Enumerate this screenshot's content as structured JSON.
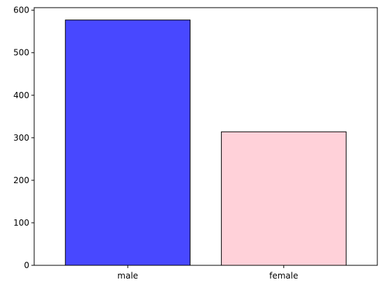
{
  "chart_data": {
    "type": "bar",
    "title": "",
    "xlabel": "",
    "ylabel": "",
    "categories": [
      "male",
      "female"
    ],
    "values": [
      577,
      314
    ],
    "colors": [
      "#4848ff",
      "#ffd1d9"
    ],
    "edge_color": "#333333",
    "bar_opacity": 0.7,
    "ylim": [
      0,
      606
    ],
    "yticks": [
      0,
      100,
      200,
      300,
      400,
      500,
      600
    ],
    "grid": false,
    "legend": "none"
  }
}
